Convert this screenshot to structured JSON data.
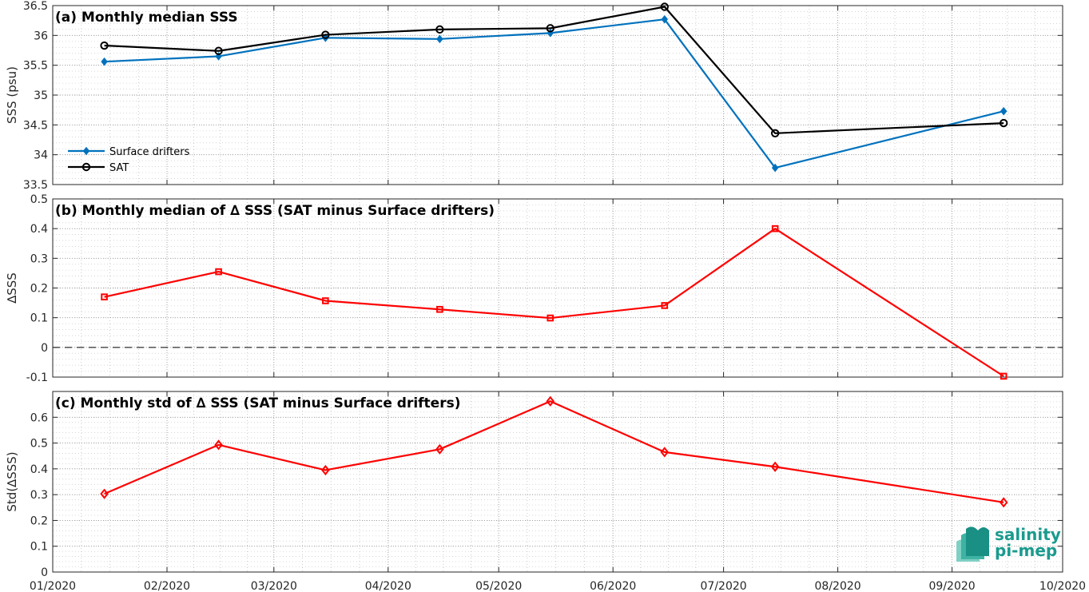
{
  "chart_data": [
    {
      "type": "line",
      "title": "(a) Monthly median SSS",
      "ylabel": "SSS (psu)",
      "ylim": [
        33.5,
        36.5
      ],
      "yticks": [
        33.5,
        34,
        34.5,
        35,
        35.5,
        36,
        36.5
      ],
      "ytick_labels": [
        "33.5",
        "34",
        "34.5",
        "35",
        "35.5",
        "36",
        "36.5"
      ],
      "x": [
        "2020-01-15",
        "2020-02-15",
        "2020-03-15",
        "2020-04-15",
        "2020-05-15",
        "2020-06-15",
        "2020-07-15",
        "2020-09-15"
      ],
      "series": [
        {
          "name": "Surface drifters",
          "color": "#0072BD",
          "marker": "diamond-filled",
          "values": [
            35.56,
            35.65,
            35.96,
            35.94,
            36.04,
            36.27,
            33.78,
            34.73
          ]
        },
        {
          "name": "SAT",
          "color": "#000000",
          "marker": "circle-open",
          "values": [
            35.83,
            35.74,
            36.01,
            36.1,
            36.12,
            36.48,
            34.36,
            34.53
          ]
        }
      ],
      "legend": "bottom-left",
      "grid": true
    },
    {
      "type": "line",
      "title": "(b) Monthly median of ∆ SSS (SAT minus Surface drifters)",
      "ylabel": "∆SSS",
      "ylim": [
        -0.1,
        0.5
      ],
      "yticks": [
        -0.1,
        0,
        0.1,
        0.2,
        0.3,
        0.4,
        0.5
      ],
      "ytick_labels": [
        "-0.1",
        "0",
        "0.1",
        "0.2",
        "0.3",
        "0.4",
        "0.5"
      ],
      "x": [
        "2020-01-15",
        "2020-02-15",
        "2020-03-15",
        "2020-04-15",
        "2020-05-15",
        "2020-06-15",
        "2020-07-15",
        "2020-09-15"
      ],
      "series": [
        {
          "color": "#FF0000",
          "marker": "square-open",
          "values": [
            0.17,
            0.255,
            0.157,
            0.128,
            0.099,
            0.141,
            0.4,
            -0.097
          ]
        }
      ],
      "reference_line": 0,
      "grid": true
    },
    {
      "type": "line",
      "title": "(c) Monthly std of ∆ SSS (SAT minus Surface drifters)",
      "ylabel": "Std(∆SSS)",
      "ylim": [
        0,
        0.7
      ],
      "yticks": [
        0,
        0.1,
        0.2,
        0.3,
        0.4,
        0.5,
        0.6
      ],
      "ytick_labels": [
        "0",
        "0.1",
        "0.2",
        "0.3",
        "0.4",
        "0.5",
        "0.6"
      ],
      "x": [
        "2020-01-15",
        "2020-02-15",
        "2020-03-15",
        "2020-04-15",
        "2020-05-15",
        "2020-06-15",
        "2020-07-15",
        "2020-09-15"
      ],
      "series": [
        {
          "color": "#FF0000",
          "marker": "diamond-open",
          "values": [
            0.303,
            0.493,
            0.395,
            0.476,
            0.662,
            0.465,
            0.408,
            0.27
          ]
        }
      ],
      "grid": true
    }
  ],
  "xaxis": {
    "range": [
      "2020-01-01",
      "2020-10-01"
    ],
    "ticks": [
      "2020-01-01",
      "2020-02-01",
      "2020-03-01",
      "2020-04-01",
      "2020-05-01",
      "2020-06-01",
      "2020-07-01",
      "2020-08-01",
      "2020-09-01",
      "2020-10-01"
    ],
    "tick_labels": [
      "01/2020",
      "02/2020",
      "03/2020",
      "04/2020",
      "05/2020",
      "06/2020",
      "07/2020",
      "08/2020",
      "09/2020",
      "10/2020"
    ]
  },
  "logo": {
    "line1": "salinity",
    "line2": "pi-mep",
    "color": "#1a9b8e"
  }
}
